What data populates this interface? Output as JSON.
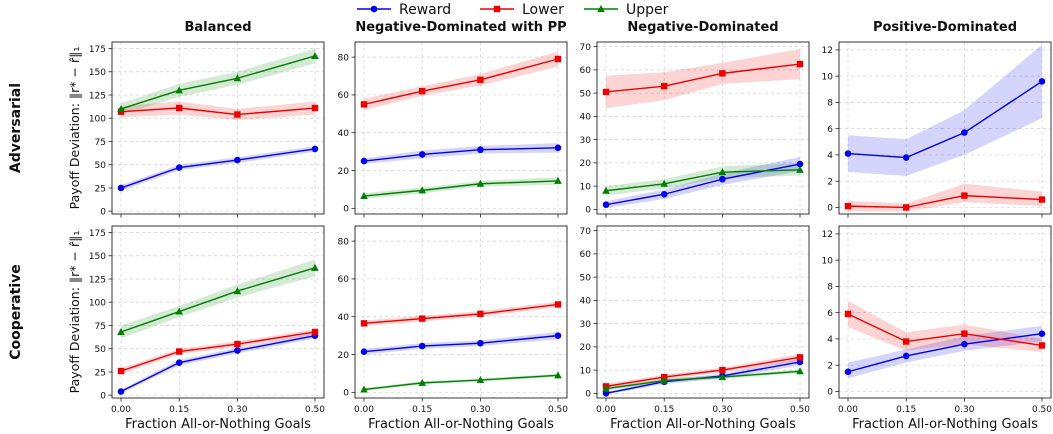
{
  "legend": {
    "placement": "top-center",
    "entries": [
      {
        "name": "Reward",
        "color": "#0000ee",
        "marker": "circle"
      },
      {
        "name": "Lower",
        "color": "#ee0000",
        "marker": "square"
      },
      {
        "name": "Upper",
        "color": "#008000",
        "marker": "triangle"
      }
    ]
  },
  "column_titles": [
    "Balanced",
    "Negative-Dominated with PP",
    "Negative-Dominated",
    "Positive-Dominated"
  ],
  "row_labels": [
    "Adversarial",
    "Cooperative"
  ],
  "xlabel": "Fraction All-or-Nothing Goals",
  "ylabel": "Payoff Deviation: ‖r* − r̂‖₁",
  "chart_data": [
    {
      "type": "line",
      "row": "Adversarial",
      "title": "Balanced",
      "x": [
        0.0,
        0.15,
        0.3,
        0.5
      ],
      "xticks": [
        "0.00",
        "0.15",
        "0.30",
        "0.50"
      ],
      "ylim": [
        -3,
        182
      ],
      "yticks": [
        0,
        25,
        50,
        75,
        100,
        125,
        150,
        175
      ],
      "grid": true,
      "series": [
        {
          "name": "Reward",
          "values": [
            25,
            47,
            55,
            67
          ],
          "lower": [
            22,
            44,
            52,
            64
          ],
          "upper": [
            28,
            50,
            58,
            70
          ]
        },
        {
          "name": "Lower",
          "values": [
            107,
            111,
            104,
            111
          ],
          "lower": [
            101,
            104,
            98,
            104
          ],
          "upper": [
            113,
            118,
            110,
            118
          ]
        },
        {
          "name": "Upper",
          "values": [
            110,
            130,
            143,
            167
          ],
          "lower": [
            104,
            123,
            136,
            159
          ],
          "upper": [
            116,
            137,
            150,
            175
          ]
        }
      ]
    },
    {
      "type": "line",
      "row": "Adversarial",
      "title": "Negative-Dominated with PP",
      "x": [
        0.0,
        0.15,
        0.3,
        0.5
      ],
      "xticks": [
        "0.00",
        "0.15",
        "0.30",
        "0.50"
      ],
      "ylim": [
        -3,
        88
      ],
      "yticks": [
        0,
        20,
        40,
        60,
        80
      ],
      "grid": true,
      "series": [
        {
          "name": "Reward",
          "values": [
            25,
            28.5,
            31,
            32
          ],
          "lower": [
            23.5,
            26.5,
            29,
            29.5
          ],
          "upper": [
            26.5,
            30.5,
            33,
            34.5
          ]
        },
        {
          "name": "Lower",
          "values": [
            55,
            62,
            68,
            79
          ],
          "lower": [
            52,
            59.5,
            65,
            75
          ],
          "upper": [
            58,
            64.5,
            71,
            83
          ]
        },
        {
          "name": "Upper",
          "values": [
            6.5,
            9.5,
            13,
            14.5
          ],
          "lower": [
            5,
            8,
            11.5,
            12.5
          ],
          "upper": [
            8,
            11,
            14.5,
            16.5
          ]
        }
      ]
    },
    {
      "type": "line",
      "row": "Adversarial",
      "title": "Negative-Dominated",
      "x": [
        0.0,
        0.15,
        0.3,
        0.5
      ],
      "xticks": [
        "0.00",
        "0.15",
        "0.30",
        "0.50"
      ],
      "ylim": [
        -2,
        72
      ],
      "yticks": [
        0,
        10,
        20,
        30,
        40,
        50,
        60,
        70
      ],
      "grid": true,
      "series": [
        {
          "name": "Reward",
          "values": [
            2,
            6.5,
            13,
            19.5
          ],
          "lower": [
            0.5,
            4.5,
            10.5,
            16.5
          ],
          "upper": [
            3.5,
            8.5,
            15.5,
            22.5
          ]
        },
        {
          "name": "Lower",
          "values": [
            50.5,
            53,
            58.5,
            62.5
          ],
          "lower": [
            43.5,
            47,
            54,
            56
          ],
          "upper": [
            57.5,
            59,
            63,
            69
          ]
        },
        {
          "name": "Upper",
          "values": [
            8,
            11,
            16,
            17
          ],
          "lower": [
            6,
            9,
            13.5,
            14.5
          ],
          "upper": [
            10,
            13,
            18.5,
            20
          ]
        }
      ]
    },
    {
      "type": "line",
      "row": "Adversarial",
      "title": "Positive-Dominated",
      "x": [
        0.0,
        0.15,
        0.3,
        0.5
      ],
      "xticks": [
        "0.00",
        "0.15",
        "0.30",
        "0.50"
      ],
      "ylim": [
        -0.5,
        12.6
      ],
      "yticks": [
        0,
        2,
        4,
        6,
        8,
        10,
        12
      ],
      "grid": true,
      "series": [
        {
          "name": "Reward",
          "values": [
            4.1,
            3.8,
            5.7,
            9.6
          ],
          "lower": [
            2.7,
            2.4,
            4.0,
            6.8
          ],
          "upper": [
            5.5,
            5.2,
            7.4,
            12.4
          ]
        },
        {
          "name": "Lower",
          "values": [
            0.1,
            0.0,
            0.9,
            0.6
          ],
          "lower": [
            -0.3,
            -0.3,
            0.4,
            0.1
          ],
          "upper": [
            0.5,
            0.3,
            1.8,
            1.2
          ]
        }
      ]
    },
    {
      "type": "line",
      "row": "Cooperative",
      "title": "Balanced",
      "x": [
        0.0,
        0.15,
        0.3,
        0.5
      ],
      "xticks": [
        "0.00",
        "0.15",
        "0.30",
        "0.50"
      ],
      "ylim": [
        -3,
        182
      ],
      "yticks": [
        0,
        25,
        50,
        75,
        100,
        125,
        150,
        175
      ],
      "grid": true,
      "series": [
        {
          "name": "Reward",
          "values": [
            4,
            35,
            48,
            64
          ],
          "lower": [
            2,
            32,
            45,
            61
          ],
          "upper": [
            6,
            38,
            51,
            67
          ]
        },
        {
          "name": "Lower",
          "values": [
            26,
            47,
            55,
            68
          ],
          "lower": [
            23,
            44,
            52,
            65
          ],
          "upper": [
            29,
            50,
            58,
            71
          ]
        },
        {
          "name": "Upper",
          "values": [
            68,
            90,
            112,
            137
          ],
          "lower": [
            61,
            84,
            105,
            128
          ],
          "upper": [
            75,
            96,
            119,
            146
          ]
        }
      ]
    },
    {
      "type": "line",
      "row": "Cooperative",
      "title": "Negative-Dominated with PP",
      "x": [
        0.0,
        0.15,
        0.3,
        0.5
      ],
      "xticks": [
        "0.00",
        "0.15",
        "0.30",
        "0.50"
      ],
      "ylim": [
        -3,
        88
      ],
      "yticks": [
        0,
        20,
        40,
        60,
        80
      ],
      "grid": true,
      "series": [
        {
          "name": "Reward",
          "values": [
            21.5,
            24.5,
            26,
            30
          ],
          "lower": [
            20,
            23,
            24.5,
            28
          ],
          "upper": [
            23,
            26,
            27.5,
            32
          ]
        },
        {
          "name": "Lower",
          "values": [
            36.5,
            39,
            41.5,
            46.5
          ],
          "lower": [
            35,
            37.5,
            40,
            45
          ],
          "upper": [
            38,
            40.5,
            43,
            48
          ]
        },
        {
          "name": "Upper",
          "values": [
            1.5,
            5,
            6.5,
            9
          ],
          "lower": [
            0.8,
            4.2,
            5.7,
            8.2
          ],
          "upper": [
            2.2,
            5.8,
            7.3,
            9.8
          ]
        }
      ]
    },
    {
      "type": "line",
      "row": "Cooperative",
      "title": "Negative-Dominated",
      "x": [
        0.0,
        0.15,
        0.3,
        0.5
      ],
      "xticks": [
        "0.00",
        "0.15",
        "0.30",
        "0.50"
      ],
      "ylim": [
        -2,
        72
      ],
      "yticks": [
        0,
        10,
        20,
        30,
        40,
        50,
        60,
        70
      ],
      "grid": true,
      "series": [
        {
          "name": "Reward",
          "values": [
            0,
            5,
            7.5,
            13.5
          ],
          "lower": [
            -0.5,
            4,
            6.5,
            12
          ],
          "upper": [
            0.5,
            6,
            8.5,
            15
          ]
        },
        {
          "name": "Lower",
          "values": [
            3,
            7,
            10,
            15.5
          ],
          "lower": [
            2,
            6,
            9,
            14
          ],
          "upper": [
            4,
            8,
            11,
            17
          ]
        },
        {
          "name": "Upper",
          "values": [
            2,
            5.5,
            7,
            9.5
          ],
          "lower": [
            1.2,
            4.7,
            6.2,
            8.7
          ],
          "upper": [
            2.8,
            6.3,
            7.8,
            10.3
          ]
        }
      ]
    },
    {
      "type": "line",
      "row": "Cooperative",
      "title": "Positive-Dominated",
      "x": [
        0.0,
        0.15,
        0.3,
        0.5
      ],
      "xticks": [
        "0.00",
        "0.15",
        "0.30",
        "0.50"
      ],
      "ylim": [
        -0.5,
        12.6
      ],
      "yticks": [
        0,
        2,
        4,
        6,
        8,
        10,
        12
      ],
      "grid": true,
      "series": [
        {
          "name": "Reward",
          "values": [
            1.5,
            2.7,
            3.6,
            4.4
          ],
          "lower": [
            1.0,
            2.2,
            3.1,
            3.8
          ],
          "upper": [
            2.2,
            3.2,
            4.2,
            5.0
          ]
        },
        {
          "name": "Lower",
          "values": [
            5.9,
            3.8,
            4.4,
            3.5
          ],
          "lower": [
            4.9,
            3.1,
            3.6,
            3.0
          ],
          "upper": [
            6.9,
            4.5,
            5.1,
            4.0
          ]
        }
      ]
    }
  ]
}
